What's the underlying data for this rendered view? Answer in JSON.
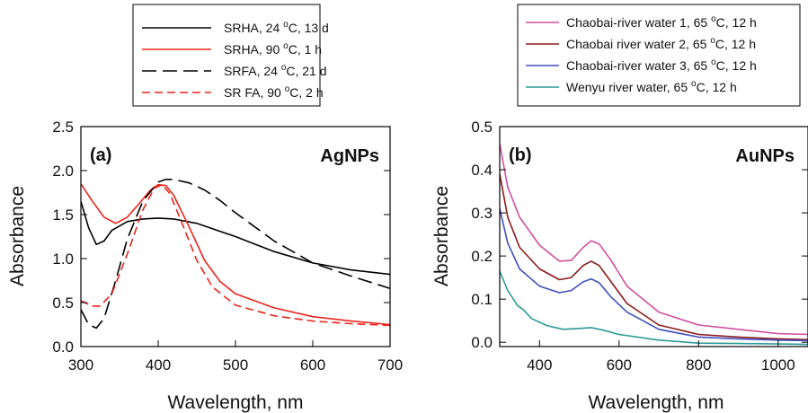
{
  "chart_data": [
    {
      "type": "line",
      "panel_label": "(a)",
      "annotation": "AgNPs",
      "xlabel": "Wavelength, nm",
      "ylabel": "Absorbance",
      "xlim": [
        300,
        700
      ],
      "ylim": [
        0,
        2.5
      ],
      "xticks": [
        "300",
        "400",
        "500",
        "600",
        "700"
      ],
      "yticks": [
        "0.0",
        "0.5",
        "1.0",
        "1.5",
        "2.0",
        "2.5"
      ],
      "grid": false,
      "legend_position": "top (above plot)",
      "series": [
        {
          "legend": [
            "SRHA, 24 ",
            "o",
            "C, 13 d"
          ],
          "color": "#000000",
          "dash": "solid",
          "x": [
            300,
            310,
            320,
            330,
            340,
            360,
            380,
            400,
            420,
            450,
            500,
            550,
            600,
            650,
            700
          ],
          "y": [
            1.65,
            1.35,
            1.16,
            1.2,
            1.32,
            1.42,
            1.45,
            1.46,
            1.45,
            1.4,
            1.25,
            1.08,
            0.95,
            0.87,
            0.82
          ]
        },
        {
          "legend": [
            "SRHA, 90 ",
            "o",
            "C, 1 h"
          ],
          "color": "#e8251b",
          "dash": "solid",
          "x": [
            300,
            315,
            330,
            345,
            360,
            375,
            390,
            400,
            410,
            420,
            440,
            460,
            480,
            500,
            550,
            600,
            650,
            700
          ],
          "y": [
            1.85,
            1.65,
            1.47,
            1.4,
            1.47,
            1.62,
            1.78,
            1.84,
            1.83,
            1.72,
            1.36,
            0.98,
            0.74,
            0.6,
            0.44,
            0.34,
            0.29,
            0.25
          ]
        },
        {
          "legend": [
            "SRFA, 24 ",
            "o",
            "C, 21 d"
          ],
          "color": "#000000",
          "dash": "long-dash",
          "x": [
            300,
            310,
            320,
            330,
            345,
            360,
            380,
            400,
            410,
            420,
            440,
            460,
            480,
            500,
            550,
            600,
            650,
            700
          ],
          "y": [
            0.42,
            0.25,
            0.21,
            0.32,
            0.75,
            1.22,
            1.65,
            1.87,
            1.9,
            1.9,
            1.86,
            1.78,
            1.66,
            1.52,
            1.2,
            0.95,
            0.8,
            0.66
          ]
        },
        {
          "legend": [
            "SR FA, 90 ",
            "o",
            "C, 2 h"
          ],
          "color": "#e8251b",
          "dash": "dashed",
          "x": [
            300,
            315,
            325,
            340,
            360,
            380,
            395,
            405,
            415,
            430,
            450,
            470,
            500,
            550,
            600,
            650,
            700
          ],
          "y": [
            0.52,
            0.46,
            0.46,
            0.6,
            1.05,
            1.55,
            1.8,
            1.84,
            1.74,
            1.42,
            0.98,
            0.68,
            0.47,
            0.35,
            0.29,
            0.26,
            0.24
          ]
        }
      ]
    },
    {
      "type": "line",
      "panel_label": "(b)",
      "annotation": "AuNPs",
      "xlabel": "Wavelength, nm",
      "ylabel": "Absorbance",
      "xlim": [
        300,
        1075
      ],
      "ylim": [
        -0.01,
        0.5
      ],
      "xticks": [
        "400",
        "600",
        "800",
        "1000"
      ],
      "yticks": [
        "0.0",
        "0.1",
        "0.2",
        "0.3",
        "0.4",
        "0.5"
      ],
      "grid": false,
      "legend_position": "top (above plot)",
      "series": [
        {
          "legend": [
            "Chaobai-river water 1, 65 ",
            "o",
            "C, 12 h"
          ],
          "color": "#d0509f",
          "dash": "solid",
          "x": [
            300,
            320,
            350,
            400,
            450,
            480,
            510,
            530,
            550,
            580,
            620,
            700,
            800,
            900,
            1000,
            1075
          ],
          "y": [
            0.46,
            0.36,
            0.29,
            0.225,
            0.188,
            0.19,
            0.22,
            0.235,
            0.228,
            0.19,
            0.13,
            0.07,
            0.04,
            0.03,
            0.02,
            0.018
          ]
        },
        {
          "legend": [
            "Chaobai river water 2, 65 ",
            "o",
            "C, 12 h"
          ],
          "color": "#8b1a1a",
          "dash": "solid",
          "x": [
            300,
            320,
            350,
            400,
            450,
            480,
            510,
            530,
            550,
            580,
            620,
            700,
            800,
            900,
            1000,
            1075
          ],
          "y": [
            0.39,
            0.29,
            0.22,
            0.17,
            0.145,
            0.15,
            0.178,
            0.188,
            0.178,
            0.14,
            0.09,
            0.04,
            0.018,
            0.012,
            0.008,
            0.006
          ]
        },
        {
          "legend": [
            "Chaobai-river water 3, 65 ",
            "o",
            "C, 12 h"
          ],
          "color": "#3f4fbf",
          "dash": "solid",
          "x": [
            300,
            320,
            350,
            400,
            450,
            480,
            510,
            530,
            550,
            580,
            620,
            700,
            800,
            900,
            1000,
            1075
          ],
          "y": [
            0.31,
            0.23,
            0.17,
            0.13,
            0.115,
            0.12,
            0.14,
            0.147,
            0.138,
            0.105,
            0.07,
            0.03,
            0.012,
            0.008,
            0.005,
            0.004
          ]
        },
        {
          "legend": [
            "Wenyu river water, 65 ",
            "o",
            "C, 12 h"
          ],
          "color": "#2a9a96",
          "dash": "solid",
          "x": [
            300,
            320,
            345,
            360,
            380,
            420,
            460,
            500,
            530,
            560,
            600,
            700,
            800,
            900,
            1000,
            1075
          ],
          "y": [
            0.165,
            0.12,
            0.085,
            0.075,
            0.055,
            0.038,
            0.03,
            0.032,
            0.034,
            0.028,
            0.018,
            0.005,
            -0.002,
            -0.003,
            -0.004,
            -0.005
          ]
        }
      ]
    }
  ]
}
